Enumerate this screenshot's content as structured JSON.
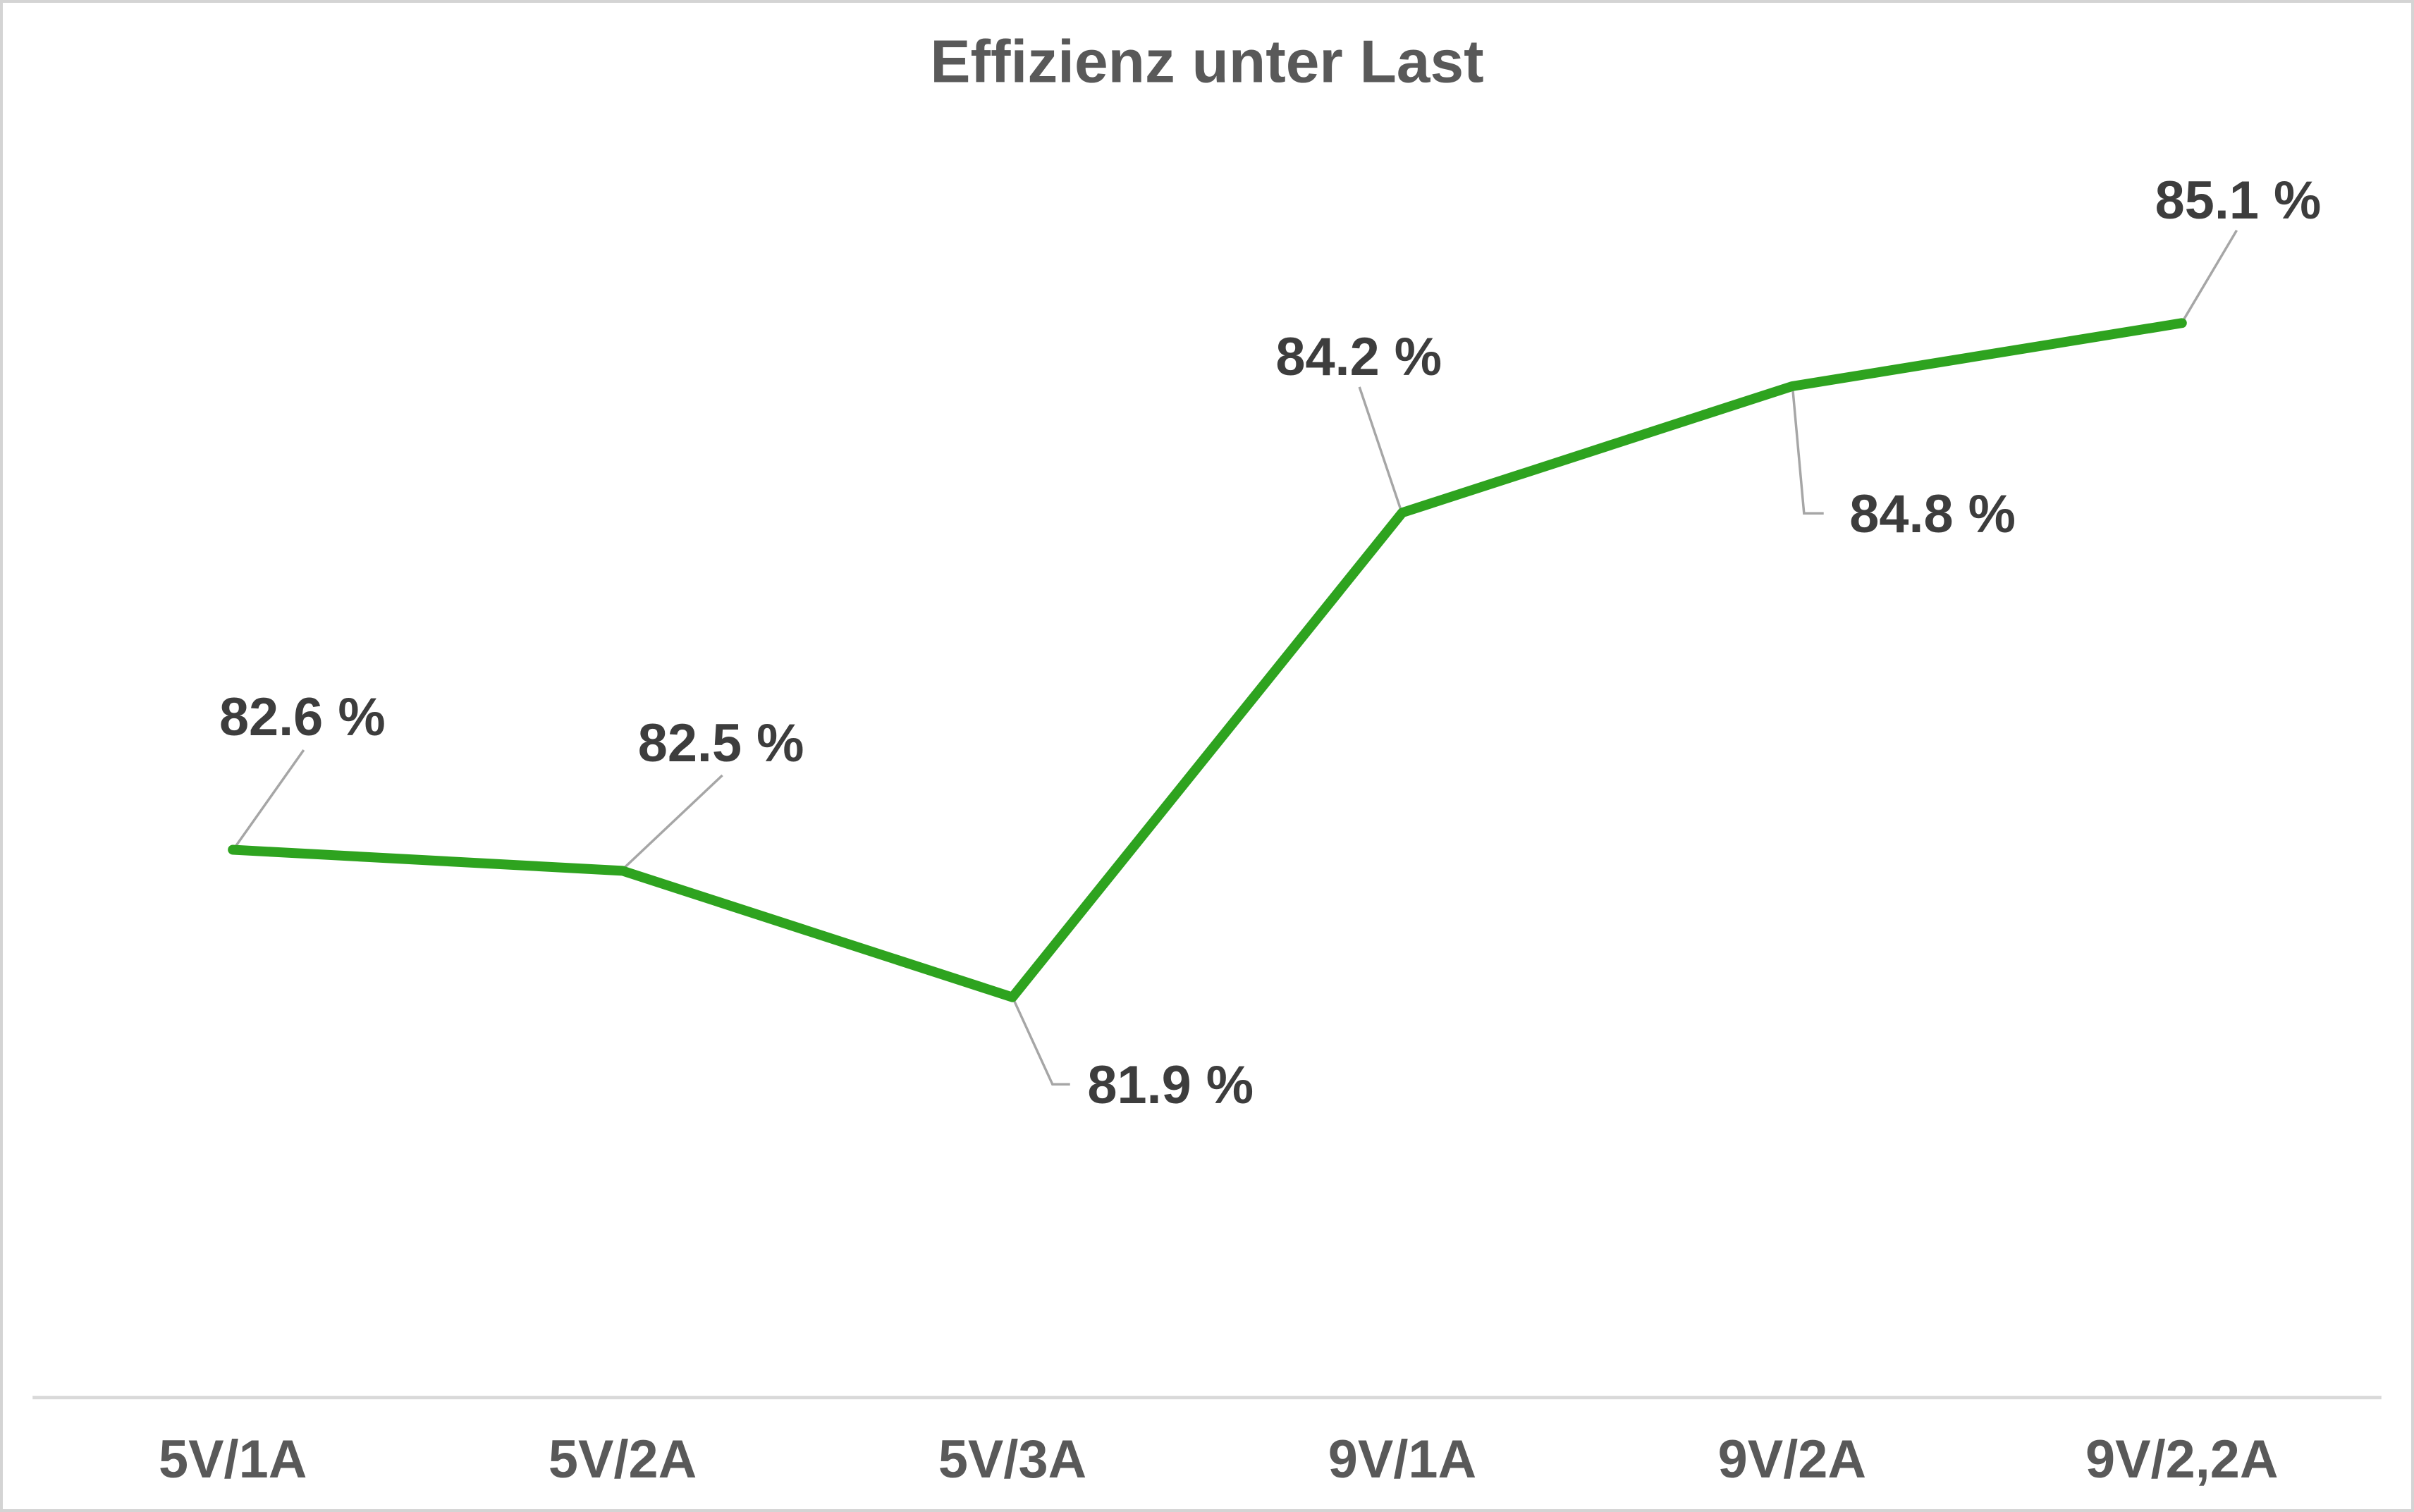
{
  "chart_data": {
    "type": "line",
    "title": "Effizienz unter Last",
    "categories": [
      "5V/1A",
      "5V/2A",
      "5V/3A",
      "9V/1A",
      "9V/2A",
      "9V/2,2A"
    ],
    "values": [
      82.6,
      82.5,
      81.9,
      84.2,
      84.8,
      85.1
    ],
    "data_labels": [
      "82.6 %",
      "82.5 %",
      "81.9 %",
      "84.2 %",
      "84.8 %",
      "85.1 %"
    ],
    "unit": "%",
    "xlabel": "",
    "ylabel": "",
    "ylim": [
      80,
      86
    ],
    "grid": false,
    "legend": false,
    "y_axis": "hidden",
    "colors": {
      "series_line": "#2ea31f",
      "data_label_text": "#3d3d3d",
      "axis_label_text": "#595959",
      "title_text": "#595959",
      "leader_line": "#a6a6a6",
      "axis_line": "#d9d9d9",
      "frame_border": "#d4d4d4",
      "background": "#ffffff"
    }
  }
}
